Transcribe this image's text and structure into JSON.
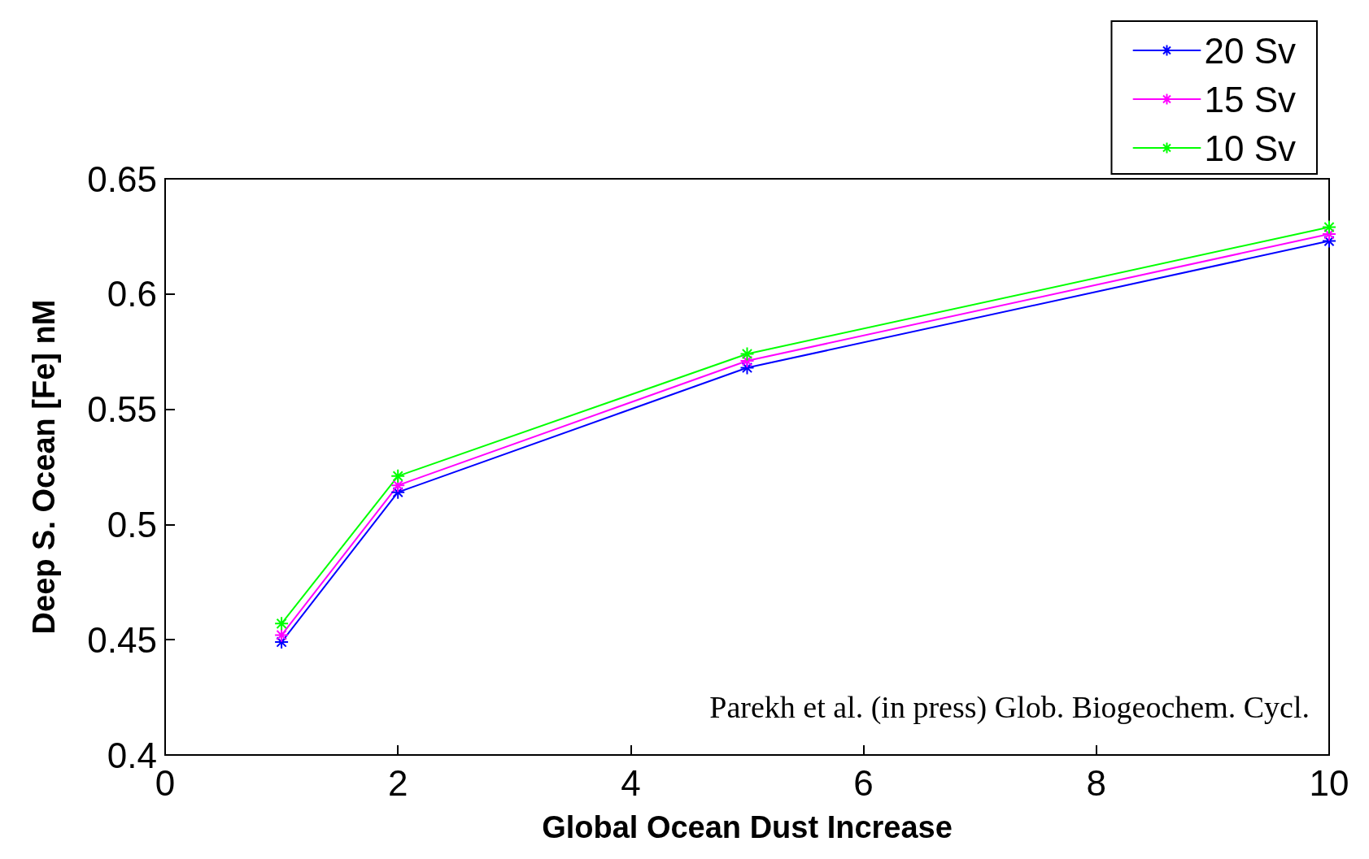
{
  "chart_data": {
    "type": "line",
    "xlabel": "Global Ocean Dust Increase",
    "ylabel": "Deep S. Ocean [Fe] nM",
    "x": [
      1,
      2,
      5,
      10
    ],
    "series": [
      {
        "name": "20 Sv",
        "color": "#0000ff",
        "values": [
          0.449,
          0.514,
          0.568,
          0.623
        ]
      },
      {
        "name": "15 Sv",
        "color": "#ff00ff",
        "values": [
          0.452,
          0.517,
          0.571,
          0.626
        ]
      },
      {
        "name": "10 Sv",
        "color": "#00ff00",
        "values": [
          0.457,
          0.521,
          0.574,
          0.629
        ]
      }
    ],
    "xlim": [
      0,
      10
    ],
    "xticks": [
      0,
      2,
      4,
      6,
      8,
      10
    ],
    "ylim": [
      0.4,
      0.65
    ],
    "yticks": [
      0.4,
      0.45,
      0.5,
      0.55,
      0.6,
      0.65
    ],
    "legend": "top right",
    "marker": "cross",
    "line_style": "solid",
    "grid": false,
    "annotations": [
      "Parekh et al. (in press) Glob. Biogeochem. Cycl."
    ]
  }
}
